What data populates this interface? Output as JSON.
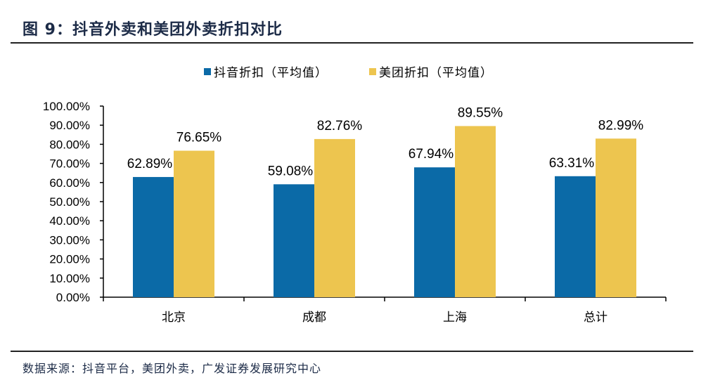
{
  "title": "图 9：抖音外卖和美团外卖折扣对比",
  "source": "数据来源：抖音平台，美团外卖，广发证券发展研究中心",
  "chart_data": {
    "type": "bar",
    "categories": [
      "北京",
      "成都",
      "上海",
      "总计"
    ],
    "series": [
      {
        "name": "抖音折扣（平均值）",
        "values": [
          62.89,
          59.08,
          67.94,
          63.31
        ],
        "color": "#0b6aa7"
      },
      {
        "name": "美团折扣（平均值）",
        "values": [
          76.65,
          82.76,
          89.55,
          82.99
        ],
        "color": "#edc54f"
      }
    ],
    "data_labels": [
      [
        "62.89%",
        "59.08%",
        "67.94%",
        "63.31%"
      ],
      [
        "76.65%",
        "82.76%",
        "89.55%",
        "82.99%"
      ]
    ],
    "yticks": [
      "0.00%",
      "10.00%",
      "20.00%",
      "30.00%",
      "40.00%",
      "50.00%",
      "60.00%",
      "70.00%",
      "80.00%",
      "90.00%",
      "100.00%"
    ],
    "ylim": [
      0,
      100
    ],
    "grid": false,
    "legend": "top"
  }
}
